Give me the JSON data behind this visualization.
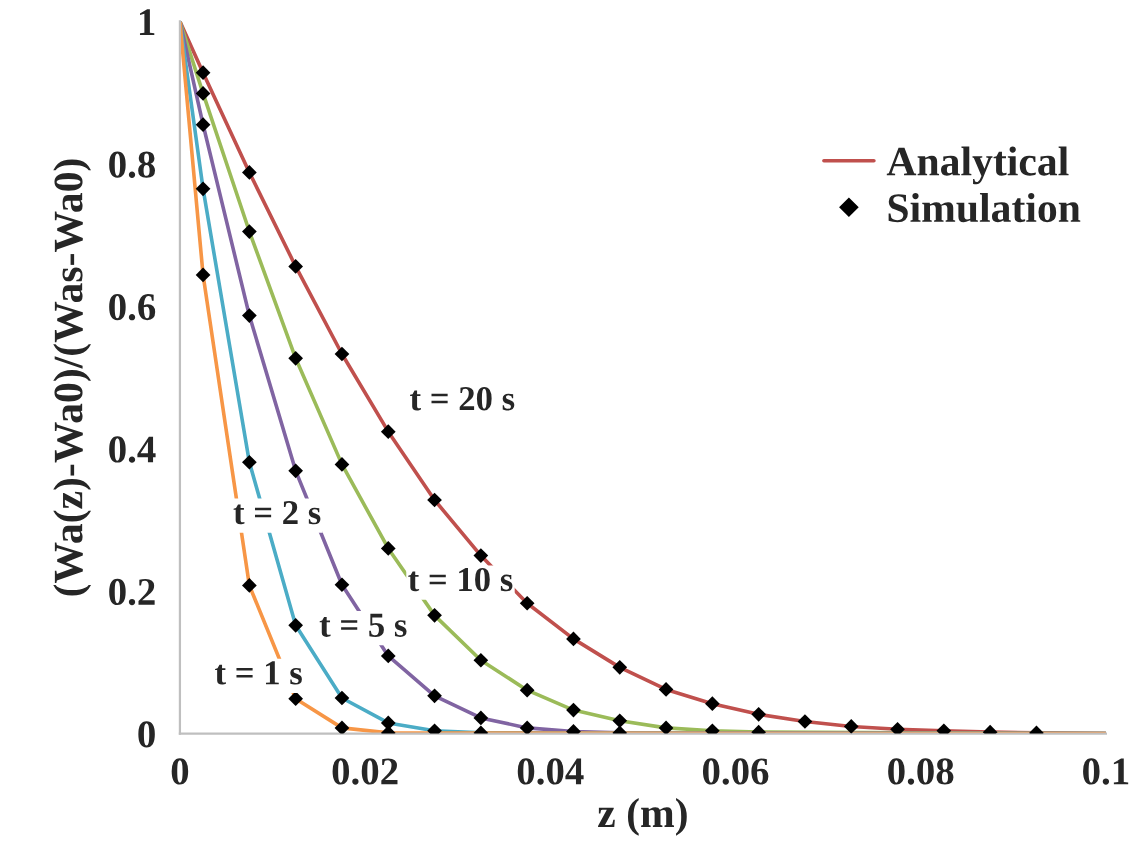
{
  "chart_data": {
    "type": "line",
    "xlabel": "z (m)",
    "ylabel": "(Wa(z)-Wa0)/(Was-Wa0)",
    "xlim": [
      0,
      0.1
    ],
    "xticks": [
      0,
      0.02,
      0.04,
      0.06,
      0.08,
      0.1
    ],
    "ylim": [
      0,
      1
    ],
    "yticks": [
      0,
      0.2,
      0.4,
      0.6,
      0.8,
      1
    ],
    "grid": false,
    "legend": "top right",
    "annotations": [
      "t = 20 s",
      "t = 10 s",
      "t = 5 s",
      "t = 2 s",
      "t = 1 s"
    ],
    "series": [
      {
        "name": "Analytical",
        "color": "#c0504d",
        "x": [
          0,
          0.0025,
          0.0075,
          0.0125,
          0.0175,
          0.0225,
          0.0275,
          0.0325,
          0.0375,
          0.0425,
          0.0475,
          0.0525,
          0.0575,
          0.0625,
          0.0675,
          0.0725,
          0.0775,
          0.0825,
          0.0875,
          0.0925,
          0.1
        ],
        "values": [
          1,
          0.928,
          0.788,
          0.656,
          0.533,
          0.424,
          0.328,
          0.25,
          0.183,
          0.133,
          0.093,
          0.062,
          0.042,
          0.027,
          0.017,
          0.01,
          0.006,
          0.004,
          0.002,
          0.001,
          0
        ]
      },
      {
        "color": "#9bbb59",
        "x": [
          0,
          0.0025,
          0.0075,
          0.0125,
          0.0175,
          0.0225,
          0.0275,
          0.0325,
          0.0375,
          0.0425,
          0.0475,
          0.0525,
          0.0575,
          0.0625,
          0.1
        ],
        "values": [
          1,
          0.899,
          0.705,
          0.527,
          0.378,
          0.26,
          0.166,
          0.103,
          0.061,
          0.033,
          0.018,
          0.008,
          0.004,
          0.002,
          0
        ]
      },
      {
        "color": "#8064a2",
        "x": [
          0,
          0.0025,
          0.0075,
          0.0125,
          0.0175,
          0.0225,
          0.0275,
          0.0325,
          0.0375,
          0.0425,
          0.0475,
          0.1
        ],
        "values": [
          1,
          0.855,
          0.587,
          0.369,
          0.209,
          0.109,
          0.053,
          0.022,
          0.008,
          0.003,
          0.001,
          0
        ]
      },
      {
        "color": "#4bacc6",
        "x": [
          0,
          0.0025,
          0.0075,
          0.0125,
          0.0175,
          0.0225,
          0.0275,
          0.0325,
          0.1
        ],
        "values": [
          1,
          0.765,
          0.381,
          0.152,
          0.05,
          0.015,
          0.004,
          0.001,
          0
        ]
      },
      {
        "color": "#f79646",
        "x": [
          0,
          0.0025,
          0.0075,
          0.0125,
          0.0175,
          0.0225,
          0.1
        ],
        "values": [
          1,
          0.644,
          0.208,
          0.049,
          0.008,
          0.001,
          0
        ]
      },
      {
        "type": "scatter",
        "name": "Simulation",
        "color": "#000000",
        "marker": "diamond",
        "x": [
          0.0025,
          0.0075,
          0.0125,
          0.0175,
          0.0225,
          0.0275,
          0.0325,
          0.0375,
          0.0425,
          0.0475,
          0.0525,
          0.0575,
          0.0625,
          0.0675,
          0.0725,
          0.0775,
          0.0825,
          0.0875,
          0.0925
        ],
        "values": [
          0.928,
          0.788,
          0.656,
          0.533,
          0.424,
          0.328,
          0.25,
          0.183,
          0.133,
          0.093,
          0.062,
          0.042,
          0.027,
          0.017,
          0.01,
          0.006,
          0.004,
          0.002,
          0.001
        ]
      },
      {
        "type": "scatter",
        "color": "#000000",
        "marker": "diamond",
        "x": [
          0.0025,
          0.0075,
          0.0125,
          0.0175,
          0.0225,
          0.0275,
          0.0325,
          0.0375,
          0.0425,
          0.0475,
          0.0525,
          0.0575,
          0.0625
        ],
        "values": [
          0.899,
          0.705,
          0.527,
          0.378,
          0.26,
          0.166,
          0.103,
          0.061,
          0.033,
          0.018,
          0.008,
          0.004,
          0.002
        ]
      },
      {
        "type": "scatter",
        "color": "#000000",
        "marker": "diamond",
        "x": [
          0.0025,
          0.0075,
          0.0125,
          0.0175,
          0.0225,
          0.0275,
          0.0325,
          0.0375,
          0.0425,
          0.0475
        ],
        "values": [
          0.855,
          0.587,
          0.369,
          0.209,
          0.109,
          0.053,
          0.022,
          0.008,
          0.003,
          0.001
        ]
      },
      {
        "type": "scatter",
        "color": "#000000",
        "marker": "diamond",
        "x": [
          0.0025,
          0.0075,
          0.0125,
          0.0175,
          0.0225,
          0.0275,
          0.0325
        ],
        "values": [
          0.765,
          0.381,
          0.152,
          0.05,
          0.015,
          0.004,
          0.001
        ]
      },
      {
        "type": "scatter",
        "color": "#000000",
        "marker": "diamond",
        "x": [
          0.0025,
          0.0075,
          0.0125,
          0.0175,
          0.0225
        ],
        "values": [
          0.644,
          0.208,
          0.049,
          0.008,
          0.001
        ]
      }
    ]
  }
}
